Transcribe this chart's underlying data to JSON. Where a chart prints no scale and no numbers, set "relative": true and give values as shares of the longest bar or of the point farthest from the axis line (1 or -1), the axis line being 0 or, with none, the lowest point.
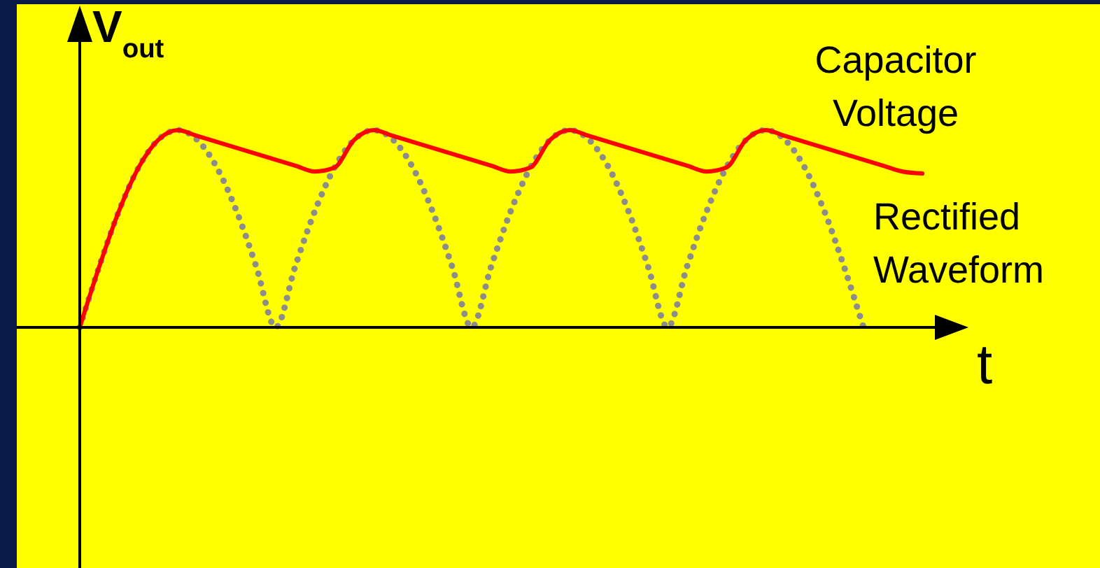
{
  "chart_data": {
    "type": "line",
    "relative": true,
    "xlabel": "t",
    "ylabel": "V$_{out}$",
    "marker": "none",
    "categories": [
      null,
      null,
      null,
      null,
      null,
      null,
      null,
      null,
      null,
      null,
      null,
      null,
      null,
      null,
      null,
      null,
      null,
      null,
      null,
      null,
      null,
      null,
      null,
      null,
      null,
      null,
      null,
      null,
      null,
      null,
      null,
      null,
      null,
      null,
      null,
      null,
      null,
      null,
      null,
      null,
      null,
      null,
      null,
      null
    ],
    "series": [
      {
        "name": "Rectified Waveform",
        "color": "#8c8c8c",
        "line_style": "dotted",
        "values": [
          0,
          0.31,
          0.59,
          0.81,
          0.95,
          1,
          0.95,
          0.81,
          0.59,
          0.31,
          0,
          0.31,
          0.59,
          0.81,
          0.95,
          1,
          0.95,
          0.81,
          0.59,
          0.31,
          0,
          0.31,
          0.59,
          0.81,
          0.95,
          1,
          0.95,
          0.81,
          0.59,
          0.31,
          0,
          0.31,
          0.59,
          0.81,
          0.95,
          1,
          0.95,
          0.81,
          0.59,
          0.31,
          0,
          null,
          null,
          null
        ]
      },
      {
        "name": "Capacitor Voltage",
        "color": "#ff0000",
        "line_style": "solid",
        "values": [
          0,
          0.31,
          0.59,
          0.81,
          0.95,
          1,
          0.97,
          0.94,
          0.91,
          0.88,
          0.85,
          0.82,
          0.79,
          0.81,
          0.95,
          1,
          0.97,
          0.94,
          0.91,
          0.88,
          0.85,
          0.82,
          0.79,
          0.81,
          0.95,
          1,
          0.97,
          0.94,
          0.91,
          0.88,
          0.85,
          0.82,
          0.79,
          0.81,
          0.95,
          1,
          0.97,
          0.94,
          0.91,
          0.88,
          0.85,
          0.82,
          0.79,
          0.78
        ]
      }
    ]
  }
}
